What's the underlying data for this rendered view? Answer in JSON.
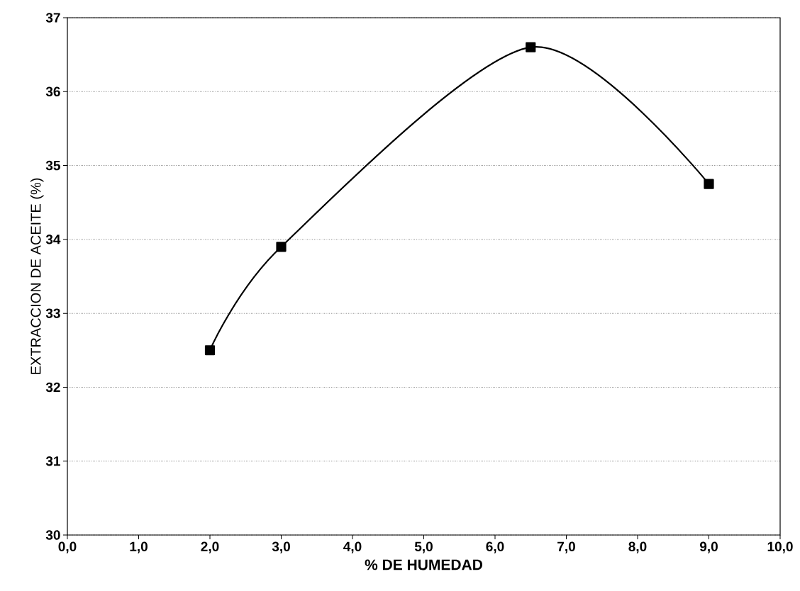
{
  "chart_data": {
    "type": "line",
    "xlabel": "% DE HUMEDAD",
    "ylabel": "EXTRACCION DE ACEITE (%)",
    "x": [
      2.0,
      3.0,
      6.5,
      9.0
    ],
    "series": [
      {
        "color": "#000000",
        "values": [
          32.5,
          33.9,
          36.6,
          34.75
        ]
      }
    ],
    "xlim": [
      0,
      10
    ],
    "ylim": [
      30,
      37
    ],
    "xticks": [
      {
        "value": 0,
        "label": "0,0"
      },
      {
        "value": 1,
        "label": "1,0"
      },
      {
        "value": 2,
        "label": "2,0"
      },
      {
        "value": 3,
        "label": "3,0"
      },
      {
        "value": 4,
        "label": "4,0"
      },
      {
        "value": 5,
        "label": "5,0"
      },
      {
        "value": 6,
        "label": "6,0"
      },
      {
        "value": 7,
        "label": "7,0"
      },
      {
        "value": 8,
        "label": "8,0"
      },
      {
        "value": 9,
        "label": "9,0"
      },
      {
        "value": 10,
        "label": "10,0"
      }
    ],
    "yticks": [
      30,
      31,
      32,
      33,
      34,
      35,
      36,
      37
    ],
    "grid": "y",
    "marker": "square",
    "line_style": "solid"
  }
}
